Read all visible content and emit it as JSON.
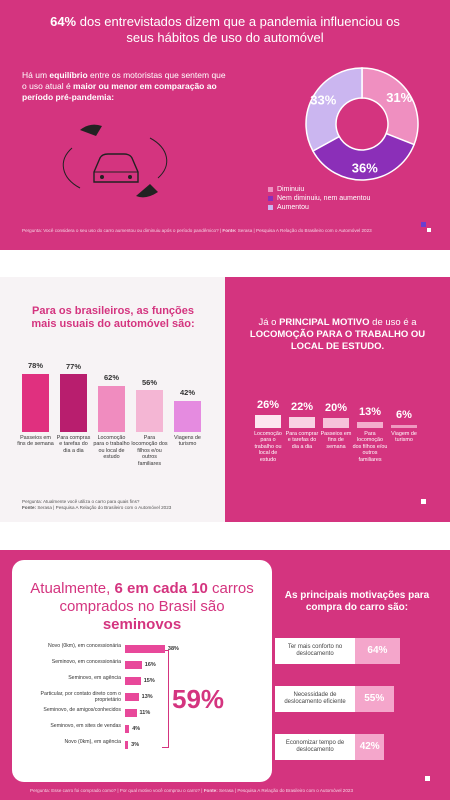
{
  "chart_data": [
    {
      "type": "pie",
      "title": [
        "64%",
        " dos entrevistados dizem que a pandemia influenciou os seus hábitos de uso do automóvel"
      ],
      "subtitle": [
        "Há um ",
        "equilíbrio",
        " entre os motoristas que sentem que o uso atual é ",
        "maior ou menor em comparação ao período pré-pandemia:"
      ],
      "categories": [
        "Diminuiu",
        "Nem diminuiu, nem aumentou",
        "Aumentou"
      ],
      "values": [
        31,
        36,
        33
      ],
      "value_labels": [
        "31%",
        "36%",
        "33%"
      ],
      "colors": [
        "#ef8fc0",
        "#8b2fb8",
        "#cbb6f0"
      ],
      "note": [
        "Pergunta: Você considera o seu uso do carro aumentou ou diminuiu após o período pandêmico?  |  ",
        "Fonte:",
        " Serasa | Pesquisa A Relação do Brasileiro com o Automóvel 2023"
      ]
    },
    {
      "type": "bar",
      "title": "Para os brasileiros, as funções mais usuais do automóvel são:",
      "categories": [
        "Passeios em fins de semana",
        "Para compras e tarefas do dia a dia",
        "Locomoção para o trabalho ou local de estudo",
        "Para locomoção dos filhos e/ou outros familiares",
        "Viagens de turismo"
      ],
      "values": [
        78,
        77,
        62,
        56,
        42
      ],
      "value_labels": [
        "78%",
        "77%",
        "62%",
        "56%",
        "42%"
      ],
      "colors": [
        "#e0307f",
        "#b81e6e",
        "#f08cbf",
        "#f4b6d4",
        "#e58be0"
      ],
      "note": [
        "Pergunta: Atualmente você utiliza o carro para quais fins?",
        "Fonte:",
        " Serasa | Pesquisa A Relação do Brasileiro com o Automóvel 2023"
      ]
    },
    {
      "type": "bar",
      "title": [
        "Já o ",
        "PRINCIPAL MOTIVO",
        " de uso é a ",
        "LOCOMOÇÃO PARA O TRABALHO OU LOCAL DE ESTUDO."
      ],
      "categories": [
        "Locomoção para o trabalho ou local de estudo",
        "Para comprar e tarefas do dia a dia",
        "Passeios em fins de semana",
        "Para locomoção dos filhos e/ou outros familiares",
        "Viagem de turismo"
      ],
      "values": [
        26,
        22,
        20,
        13,
        6
      ],
      "value_labels": [
        "26%",
        "22%",
        "20%",
        "13%",
        "6%"
      ],
      "colors": [
        "#fde6f0",
        "#f9d2e4",
        "#f6c2da",
        "#f3accc",
        "#ef98c0"
      ]
    },
    {
      "type": "hbar",
      "title": [
        "Atualmente, ",
        "6 em cada 10",
        " carros comprados no Brasil são ",
        "seminovos"
      ],
      "categories": [
        "Novo (0km), em concessionária",
        "Seminovo, em concessionária",
        "Seminovo, em agência",
        "Particular, por contato direto com o proprietário",
        "Seminovo, de amigos/conhecidos",
        "Seminovo, em sites de vendas",
        "Novo (0km), em agência"
      ],
      "values": [
        38,
        16,
        15,
        13,
        11,
        4,
        3
      ],
      "value_labels": [
        "38%",
        "16%",
        "15%",
        "13%",
        "11%",
        "4%",
        "3%"
      ],
      "color": "#e8489a",
      "highlight": "59%",
      "note": [
        "Pergunta: Esse carro foi comprado como? | Por qual motivo você comprou o carro?  |  ",
        "Fonte:",
        " Serasa | Pesquisa A Relação do Brasileiro com o Automóvel 2023"
      ]
    },
    {
      "type": "hbar",
      "title": "As principais motivações para compra do carro são:",
      "categories": [
        "Ter mais conforto no deslocamento",
        "Necessidade de deslocamento eficiente",
        "Economizar tempo de deslocamento"
      ],
      "values": [
        64,
        55,
        42
      ],
      "value_labels": [
        "64%",
        "55%",
        "42%"
      ],
      "color": "#f4a6cb"
    }
  ]
}
